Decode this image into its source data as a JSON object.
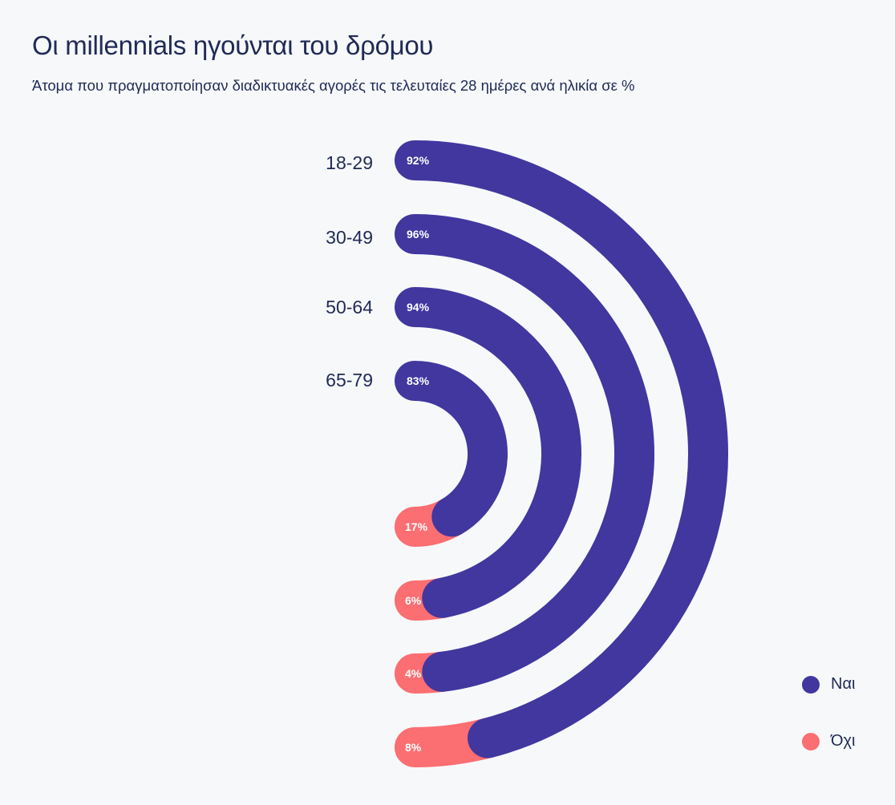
{
  "title": "Οι millennials ηγούνται του δρόμου",
  "subtitle": "Άτομα που πραγματοποίησαν διαδικτυακές αγορές τις τελευταίες 28 ημέρες ανά ηλικία σε %",
  "colors": {
    "yes": "#41379f",
    "no": "#fb6e72"
  },
  "chart_data": {
    "type": "radial-bar",
    "categories": [
      "18-29",
      "30-49",
      "50-64",
      "65-79"
    ],
    "series": [
      {
        "name": "Ναι",
        "values": [
          92,
          96,
          94,
          83
        ],
        "labels": [
          "92%",
          "96%",
          "94%",
          "83%"
        ]
      },
      {
        "name": "Όχι",
        "values": [
          8,
          4,
          6,
          17
        ],
        "labels": [
          "8%",
          "4%",
          "6%",
          "17%"
        ]
      }
    ],
    "legend": "bottom-right"
  },
  "legend": {
    "yes": "Ναι",
    "no": "Όχι"
  }
}
